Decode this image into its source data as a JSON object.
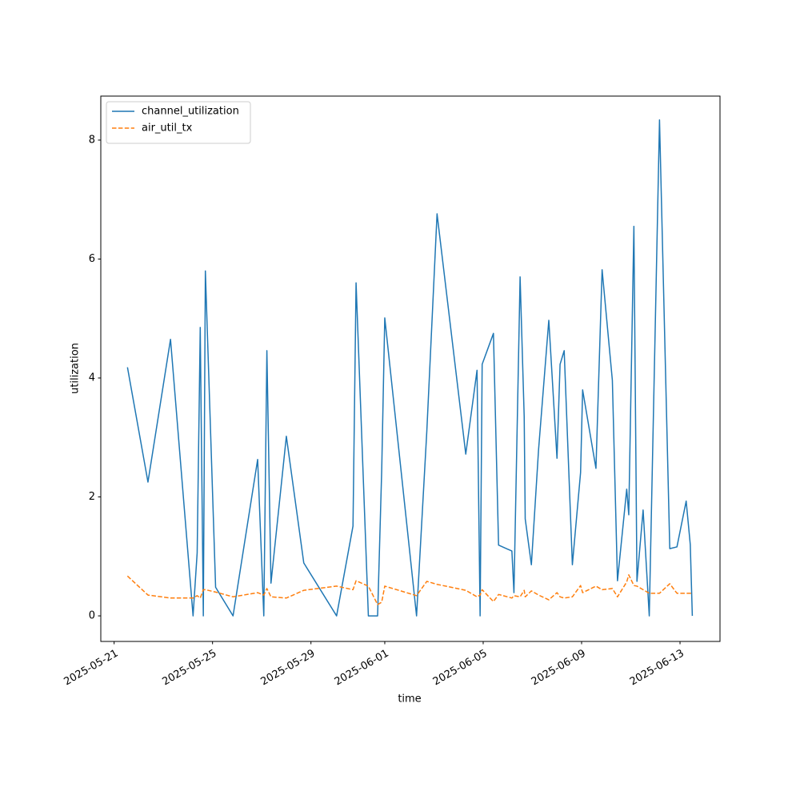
{
  "chart_data": {
    "type": "line",
    "xlabel": "time",
    "ylabel": "utilization",
    "x": [
      "2025-05-21 13:00",
      "2025-05-22 09:00",
      "2025-05-23 07:00",
      "2025-05-24 05:00",
      "2025-05-24 09:00",
      "2025-05-24 12:00",
      "2025-05-24 15:00",
      "2025-05-24 17:00",
      "2025-05-25 03:00",
      "2025-05-25 20:00",
      "2025-05-26 20:00",
      "2025-05-27 02:00",
      "2025-05-27 05:00",
      "2025-05-27 09:00",
      "2025-05-28 00:00",
      "2025-05-28 17:00",
      "2025-05-30 01:00",
      "2025-05-30 17:00",
      "2025-05-30 20:00",
      "2025-05-31 08:00",
      "2025-05-31 17:00",
      "2025-05-31 21:00",
      "2025-06-01 00:00",
      "2025-06-02 07:00",
      "2025-06-02 17:00",
      "2025-06-03 03:00",
      "2025-06-04 07:00",
      "2025-06-04 18:00",
      "2025-06-04 21:00",
      "2025-06-04 23:00",
      "2025-06-05 10:00",
      "2025-06-05 15:00",
      "2025-06-06 04:00",
      "2025-06-06 06:00",
      "2025-06-06 12:00",
      "2025-06-06 16:00",
      "2025-06-06 17:00",
      "2025-06-06 23:00",
      "2025-06-07 06:00",
      "2025-06-07 16:00",
      "2025-06-08 00:00",
      "2025-06-08 03:00",
      "2025-06-08 07:00",
      "2025-06-08 15:00",
      "2025-06-08 23:00",
      "2025-06-09 01:00",
      "2025-06-09 14:00",
      "2025-06-09 20:00",
      "2025-06-10 06:00",
      "2025-06-10 11:00",
      "2025-06-10 20:00",
      "2025-06-10 22:00",
      "2025-06-11 03:00",
      "2025-06-11 06:00",
      "2025-06-11 12:00",
      "2025-06-11 18:00",
      "2025-06-12 04:00",
      "2025-06-12 14:00",
      "2025-06-12 21:00",
      "2025-06-13 06:00",
      "2025-06-13 10:00",
      "2025-06-13 12:00"
    ],
    "series": [
      {
        "name": "channel_utilization",
        "color": "#1f77b4",
        "dash": "solid",
        "values": [
          4.18,
          2.25,
          4.65,
          0,
          1.06,
          4.85,
          0,
          5.8,
          0.48,
          0,
          2.63,
          0,
          4.46,
          0.55,
          3.02,
          0.89,
          0,
          1.51,
          5.6,
          0,
          0,
          2.44,
          5.01,
          0,
          3.1,
          6.76,
          2.72,
          4.13,
          0,
          4.23,
          4.75,
          1.19,
          1.09,
          0.39,
          5.7,
          3.35,
          1.63,
          0.86,
          2.79,
          4.97,
          2.65,
          4.23,
          4.46,
          0.86,
          2.41,
          3.8,
          2.48,
          5.82,
          3.96,
          0.59,
          2.13,
          1.7,
          6.55,
          0.58,
          1.78,
          0,
          8.34,
          1.13,
          1.16,
          1.93,
          1.2,
          0
        ]
      },
      {
        "name": "air_util_tx",
        "color": "#ff7f0e",
        "dash": "dashed",
        "values": [
          0.67,
          0.35,
          0.3,
          0.3,
          0.34,
          0.3,
          0.44,
          0.44,
          0.4,
          0.32,
          0.39,
          0.35,
          0.46,
          0.32,
          0.3,
          0.43,
          0.5,
          0.44,
          0.59,
          0.5,
          0.19,
          0.23,
          0.5,
          0.34,
          0.58,
          0.53,
          0.43,
          0.32,
          0.35,
          0.44,
          0.24,
          0.36,
          0.3,
          0.34,
          0.32,
          0.43,
          0.32,
          0.42,
          0.35,
          0.27,
          0.39,
          0.32,
          0.3,
          0.32,
          0.51,
          0.39,
          0.5,
          0.44,
          0.46,
          0.32,
          0.57,
          0.69,
          0.51,
          0.5,
          0.44,
          0.38,
          0.38,
          0.54,
          0.38,
          0.38,
          0.38,
          0.38
        ]
      }
    ],
    "xlim": [
      "2025-05-20 11:00",
      "2025-06-14 15:00"
    ],
    "xticks": [
      "2025-05-21",
      "2025-05-25",
      "2025-05-29",
      "2025-06-01",
      "2025-06-05",
      "2025-06-09",
      "2025-06-13"
    ],
    "ylim": [
      -0.43,
      8.74
    ],
    "yticks": [
      0,
      2,
      4,
      6,
      8
    ],
    "grid": false,
    "legend": "upper left"
  }
}
